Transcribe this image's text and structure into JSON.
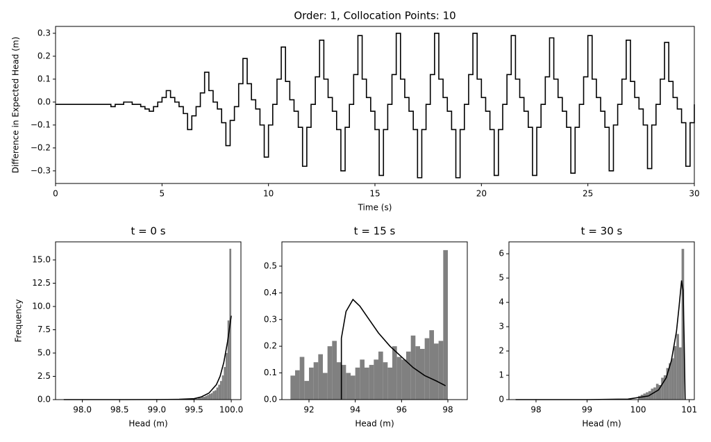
{
  "chart_data": [
    {
      "type": "line",
      "drawstyle": "steps-post",
      "title": "Order: 1, Collocation Points: 10",
      "xlabel": "Time (s)",
      "ylabel": "Difference in Expected Head (m)",
      "color": "#000000",
      "x": [
        0,
        0.2,
        0.4,
        0.6,
        0.8,
        1,
        1.2,
        1.4,
        1.6,
        1.8,
        2,
        2.2,
        2.4,
        2.6,
        2.8,
        3,
        3.2,
        3.4,
        3.6,
        3.8,
        4,
        4.2,
        4.4,
        4.6,
        4.8,
        5,
        5.2,
        5.4,
        5.6,
        5.8,
        6,
        6.2,
        6.4,
        6.6,
        6.8,
        7,
        7.2,
        7.4,
        7.6,
        7.8,
        8,
        8.2,
        8.4,
        8.6,
        8.8,
        9,
        9.2,
        9.4,
        9.6,
        9.8,
        10,
        10.2,
        10.4,
        10.6,
        10.8,
        11,
        11.2,
        11.4,
        11.6,
        11.8,
        12,
        12.2,
        12.4,
        12.6,
        12.8,
        13,
        13.2,
        13.4,
        13.6,
        13.8,
        14,
        14.2,
        14.4,
        14.6,
        14.8,
        15,
        15.2,
        15.4,
        15.6,
        15.8,
        16,
        16.2,
        16.4,
        16.6,
        16.8,
        17,
        17.2,
        17.4,
        17.6,
        17.8,
        18,
        18.2,
        18.4,
        18.6,
        18.8,
        19,
        19.2,
        19.4,
        19.6,
        19.8,
        20,
        20.2,
        20.4,
        20.6,
        20.8,
        21,
        21.2,
        21.4,
        21.6,
        21.8,
        22,
        22.2,
        22.4,
        22.6,
        22.8,
        23,
        23.2,
        23.4,
        23.6,
        23.8,
        24,
        24.2,
        24.4,
        24.6,
        24.8,
        25,
        25.2,
        25.4,
        25.6,
        25.8,
        26,
        26.2,
        26.4,
        26.6,
        26.8,
        27,
        27.2,
        27.4,
        27.6,
        27.8,
        28,
        28.2,
        28.4,
        28.6,
        28.8,
        29,
        29.2,
        29.4,
        29.6,
        29.8,
        30
      ],
      "values": [
        -0.01,
        -0.01,
        -0.01,
        -0.01,
        -0.01,
        -0.01,
        -0.01,
        -0.01,
        -0.01,
        -0.01,
        -0.01,
        -0.01,
        -0.01,
        -0.02,
        -0.01,
        -0.01,
        0,
        0,
        -0.01,
        -0.01,
        -0.02,
        -0.03,
        -0.04,
        -0.02,
        0,
        0.02,
        0.05,
        0.02,
        0,
        -0.02,
        -0.05,
        -0.12,
        -0.06,
        -0.02,
        0.04,
        0.13,
        0.05,
        0,
        -0.03,
        -0.09,
        -0.19,
        -0.08,
        -0.02,
        0.08,
        0.19,
        0.08,
        0.01,
        -0.03,
        -0.1,
        -0.24,
        -0.1,
        -0.01,
        0.1,
        0.24,
        0.09,
        0.01,
        -0.04,
        -0.11,
        -0.28,
        -0.11,
        -0.01,
        0.11,
        0.27,
        0.1,
        0.02,
        -0.04,
        -0.12,
        -0.3,
        -0.11,
        -0.01,
        0.12,
        0.29,
        0.1,
        0.02,
        -0.04,
        -0.12,
        -0.32,
        -0.12,
        -0.01,
        0.12,
        0.3,
        0.1,
        0.02,
        -0.04,
        -0.12,
        -0.33,
        -0.12,
        -0.01,
        0.12,
        0.3,
        0.1,
        0.02,
        -0.04,
        -0.12,
        -0.33,
        -0.12,
        -0.01,
        0.12,
        0.3,
        0.1,
        0.02,
        -0.04,
        -0.12,
        -0.32,
        -0.12,
        -0.01,
        0.12,
        0.29,
        0.1,
        0.02,
        -0.04,
        -0.11,
        -0.32,
        -0.11,
        -0.01,
        0.11,
        0.28,
        0.1,
        0.02,
        -0.04,
        -0.11,
        -0.31,
        -0.11,
        -0.01,
        0.11,
        0.29,
        0.1,
        0.02,
        -0.04,
        -0.11,
        -0.3,
        -0.1,
        -0.01,
        0.1,
        0.27,
        0.09,
        0.02,
        -0.03,
        -0.1,
        -0.29,
        -0.1,
        -0.01,
        0.1,
        0.26,
        0.09,
        0.02,
        -0.03,
        -0.09,
        -0.28,
        -0.09,
        -0.01
      ],
      "xlim": [
        0,
        30
      ],
      "xticks": [
        0,
        5,
        10,
        15,
        20,
        25,
        30
      ],
      "ylim": [
        -0.355,
        0.33
      ],
      "yticks": [
        {
          "value": -0.3,
          "label": "−0.3"
        },
        {
          "value": -0.2,
          "label": "−0.2"
        },
        {
          "value": -0.1,
          "label": "−0.1"
        },
        {
          "value": 0,
          "label": "0.0"
        },
        {
          "value": 0.1,
          "label": "0.1"
        },
        {
          "value": 0.2,
          "label": "0.2"
        },
        {
          "value": 0.3,
          "label": "0.3"
        }
      ]
    },
    {
      "type": "histogram",
      "title": "t = 0 s",
      "xlabel": "Head (m)",
      "ylabel": "Frequency",
      "color": "#808080",
      "bins": [
        99.5,
        99.525,
        99.55,
        99.575,
        99.6,
        99.625,
        99.65,
        99.675,
        99.7,
        99.725,
        99.75,
        99.775,
        99.8,
        99.825,
        99.85,
        99.875,
        99.9,
        99.925,
        99.95,
        99.975,
        100.0
      ],
      "values": [
        0.1,
        0.1,
        0.2,
        0.2,
        0.3,
        0.3,
        0.4,
        0.5,
        0.6,
        0.7,
        0.9,
        1.0,
        1.3,
        1.6,
        2.0,
        2.6,
        3.5,
        5.0,
        8.5,
        16.2
      ],
      "curve": {
        "color": "#000000",
        "x": [
          97.75,
          98,
          98.5,
          99,
          99.3,
          99.5,
          99.6,
          99.7,
          99.8,
          99.85,
          99.9,
          99.95,
          100.0
        ],
        "values": [
          0,
          0,
          0,
          0.01,
          0.03,
          0.1,
          0.3,
          0.7,
          1.6,
          2.5,
          4.0,
          6.2,
          9.0
        ]
      },
      "xlim": [
        97.64,
        100.13
      ],
      "xticks": [
        {
          "value": 98,
          "label": "98.0"
        },
        {
          "value": 98.5,
          "label": "98.5"
        },
        {
          "value": 99,
          "label": "99.0"
        },
        {
          "value": 99.5,
          "label": "99.5"
        },
        {
          "value": 100,
          "label": "100.0"
        }
      ],
      "ylim": [
        0,
        16.94
      ],
      "yticks": [
        {
          "value": 0,
          "label": "0.0"
        },
        {
          "value": 2.5,
          "label": "2.5"
        },
        {
          "value": 5,
          "label": "5.0"
        },
        {
          "value": 7.5,
          "label": "7.5"
        },
        {
          "value": 10,
          "label": "10.0"
        },
        {
          "value": 12.5,
          "label": "12.5"
        },
        {
          "value": 15,
          "label": "15.0"
        }
      ]
    },
    {
      "type": "histogram",
      "title": "t = 15 s",
      "xlabel": "Head (m)",
      "color": "#808080",
      "bins": [
        91.2,
        91.4,
        91.6,
        91.8,
        92,
        92.2,
        92.4,
        92.6,
        92.8,
        93,
        93.2,
        93.4,
        93.6,
        93.8,
        94,
        94.2,
        94.4,
        94.6,
        94.8,
        95,
        95.2,
        95.4,
        95.6,
        95.8,
        96,
        96.2,
        96.4,
        96.6,
        96.8,
        97,
        97.2,
        97.4,
        97.6,
        97.8,
        98
      ],
      "values": [
        0.09,
        0.11,
        0.16,
        0.07,
        0.12,
        0.14,
        0.17,
        0.1,
        0.2,
        0.22,
        0.14,
        0.13,
        0.1,
        0.09,
        0.12,
        0.15,
        0.12,
        0.13,
        0.15,
        0.18,
        0.14,
        0.12,
        0.2,
        0.16,
        0.15,
        0.18,
        0.24,
        0.2,
        0.19,
        0.23,
        0.26,
        0.21,
        0.22,
        0.56
      ],
      "curve": {
        "color": "#000000",
        "x": [
          93.4,
          93.4,
          93.6,
          93.9,
          94.2,
          94.6,
          95,
          95.5,
          96,
          96.5,
          97,
          97.5,
          97.9
        ],
        "values": [
          0,
          0.23,
          0.33,
          0.375,
          0.35,
          0.3,
          0.25,
          0.2,
          0.16,
          0.12,
          0.09,
          0.07,
          0.052
        ]
      },
      "xlim": [
        90.83,
        98.84
      ],
      "xticks": [
        92,
        94,
        96,
        98
      ],
      "ylim": [
        0,
        0.591
      ],
      "yticks": [
        {
          "value": 0,
          "label": "0.0"
        },
        {
          "value": 0.1,
          "label": "0.1"
        },
        {
          "value": 0.2,
          "label": "0.2"
        },
        {
          "value": 0.3,
          "label": "0.3"
        },
        {
          "value": 0.4,
          "label": "0.4"
        },
        {
          "value": 0.5,
          "label": "0.5"
        }
      ]
    },
    {
      "type": "histogram",
      "title": "t = 30 s",
      "xlabel": "Head (m)",
      "color": "#808080",
      "bins": [
        100,
        100.05,
        100.1,
        100.15,
        100.2,
        100.25,
        100.3,
        100.35,
        100.4,
        100.45,
        100.5,
        100.55,
        100.6,
        100.65,
        100.7,
        100.75,
        100.8,
        100.85,
        100.9
      ],
      "values": [
        0.15,
        0.2,
        0.25,
        0.3,
        0.35,
        0.45,
        0.5,
        0.65,
        0.6,
        0.9,
        1.0,
        1.3,
        1.5,
        1.7,
        2.2,
        2.7,
        2.15,
        6.2
      ],
      "curve": {
        "color": "#000000",
        "x": [
          97.6,
          98,
          99,
          99.8,
          100.2,
          100.4,
          100.55,
          100.65,
          100.75,
          100.8,
          100.85,
          100.88,
          100.9,
          100.92
        ],
        "values": [
          0,
          0,
          0,
          0.02,
          0.15,
          0.4,
          0.9,
          1.6,
          2.8,
          3.8,
          4.9,
          4.5,
          2.5,
          0
        ]
      },
      "xlim": [
        97.47,
        101.1
      ],
      "xticks": [
        98,
        99,
        100,
        101
      ],
      "ylim": [
        0,
        6.49
      ],
      "yticks": [
        0,
        1,
        2,
        3,
        4,
        5,
        6
      ]
    }
  ]
}
